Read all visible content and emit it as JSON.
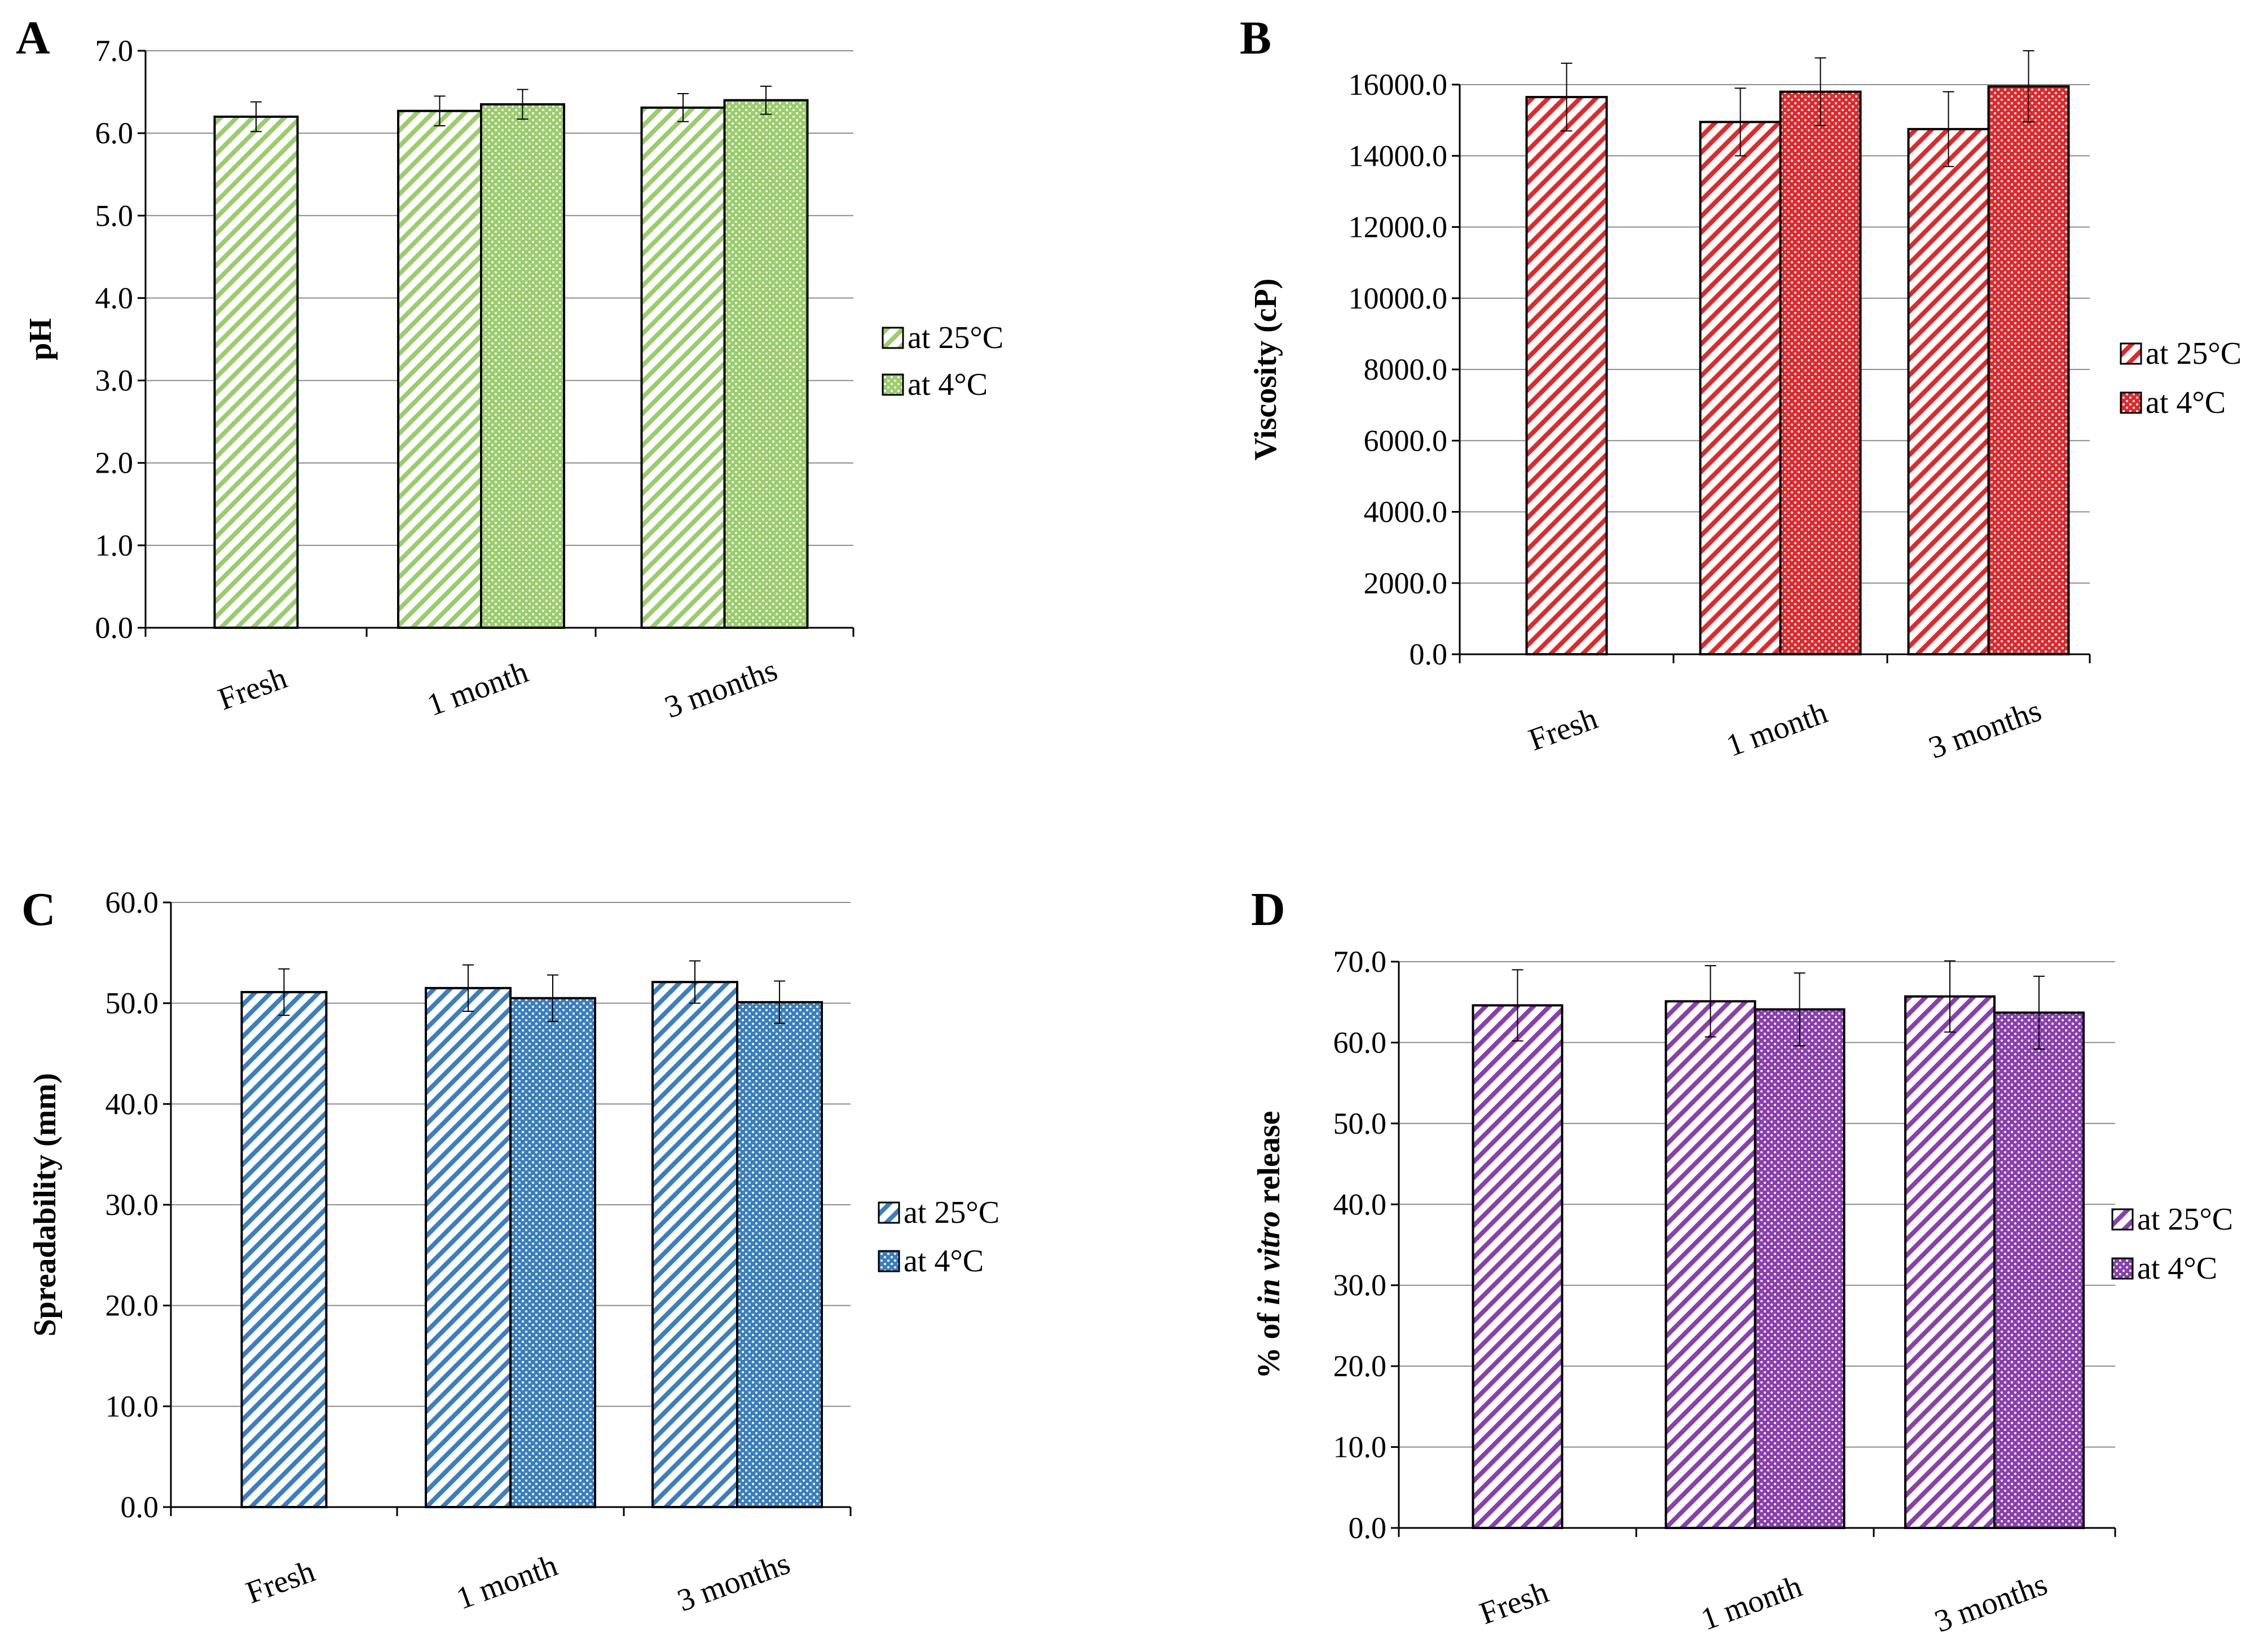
{
  "chart_data": [
    {
      "panel": "A",
      "type": "bar",
      "ylabel": "pH",
      "categories": [
        "Fresh",
        "1 month",
        "3 months"
      ],
      "ylim": [
        0,
        7
      ],
      "yticks": [
        "0.0",
        "1.0",
        "2.0",
        "3.0",
        "4.0",
        "5.0",
        "6.0",
        "7.0"
      ],
      "grid": true,
      "legend_position": "right",
      "series": [
        {
          "name": "at 25°C",
          "pattern": "hatch",
          "values": [
            6.2,
            6.27,
            6.31
          ],
          "errors": [
            0.18,
            0.18,
            0.17
          ]
        },
        {
          "name": "at 4°C",
          "pattern": "dots",
          "values": [
            null,
            6.35,
            6.4
          ],
          "errors": [
            null,
            0.18,
            0.17
          ]
        }
      ],
      "color": "#9acd6b",
      "stroke": "#6e9d3e"
    },
    {
      "panel": "B",
      "type": "bar",
      "ylabel": "Viscosity (cP)",
      "categories": [
        "Fresh",
        "1 month",
        "3 months"
      ],
      "ylim": [
        0,
        16000
      ],
      "yticks": [
        "0.0",
        "2000.0",
        "4000.0",
        "6000.0",
        "8000.0",
        "10000.0",
        "12000.0",
        "14000.0",
        "16000.0"
      ],
      "grid": true,
      "legend_position": "right",
      "series": [
        {
          "name": "at 25°C",
          "pattern": "hatch",
          "values": [
            15650,
            14950,
            14750
          ],
          "errors": [
            950,
            950,
            1050
          ]
        },
        {
          "name": "at 4°C",
          "pattern": "dots",
          "values": [
            null,
            15800,
            15950
          ],
          "errors": [
            null,
            950,
            1000
          ]
        }
      ],
      "color": "#e2282b",
      "stroke": "#b01d20"
    },
    {
      "panel": "C",
      "type": "bar",
      "ylabel": "Spreadability (mm)",
      "categories": [
        "Fresh",
        "1 month",
        "3 months"
      ],
      "ylim": [
        0,
        60
      ],
      "yticks": [
        "0.0",
        "10.0",
        "20.0",
        "30.0",
        "40.0",
        "50.0",
        "60.0"
      ],
      "grid": true,
      "legend_position": "right",
      "series": [
        {
          "name": "at 25°C",
          "pattern": "hatch",
          "values": [
            51.1,
            51.5,
            52.1
          ],
          "errors": [
            2.3,
            2.3,
            2.1
          ]
        },
        {
          "name": "at 4°C",
          "pattern": "dots",
          "values": [
            null,
            50.5,
            50.1
          ],
          "errors": [
            null,
            2.3,
            2.1
          ]
        }
      ],
      "color": "#3a7fbf",
      "stroke": "#1f4f88"
    },
    {
      "panel": "D",
      "type": "bar",
      "ylabel_parts": [
        "% of ",
        "in vitro",
        " release"
      ],
      "categories": [
        "Fresh",
        "1 month",
        "3 months"
      ],
      "ylim": [
        0,
        70
      ],
      "yticks": [
        "0.0",
        "10.0",
        "20.0",
        "30.0",
        "40.0",
        "50.0",
        "60.0",
        "70.0"
      ],
      "grid": true,
      "legend_position": "right",
      "series": [
        {
          "name": "at 25°C",
          "pattern": "hatch",
          "values": [
            64.6,
            65.1,
            65.7
          ],
          "errors": [
            4.4,
            4.4,
            4.4
          ]
        },
        {
          "name": "at 4°C",
          "pattern": "dots",
          "values": [
            null,
            64.1,
            63.7
          ],
          "errors": [
            null,
            4.5,
            4.5
          ]
        }
      ],
      "color": "#8a3fb0",
      "stroke": "#5c2279"
    }
  ]
}
